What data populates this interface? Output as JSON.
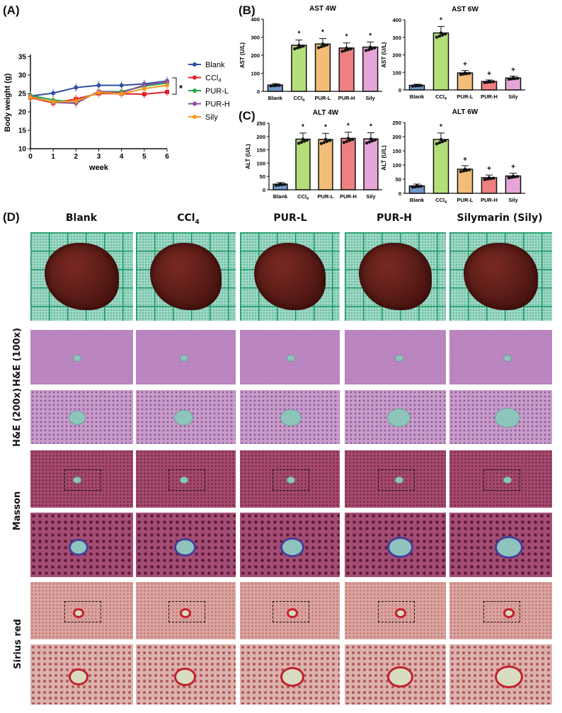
{
  "labels": {
    "a": "(A)",
    "b": "(B)",
    "c": "(C)",
    "d": "(D)"
  },
  "chart_data": [
    {
      "id": "bw",
      "type": "line",
      "xlabel": "week",
      "ylabel": "Body weight (g)",
      "xlim": [
        0,
        6
      ],
      "ylim": [
        10,
        35
      ],
      "xticks": [
        0,
        1,
        2,
        3,
        4,
        5,
        6
      ],
      "yticks": [
        10,
        15,
        20,
        25,
        30,
        35
      ],
      "legend": "right",
      "annotation": "*",
      "x": [
        0,
        1,
        2,
        3,
        4,
        5,
        6
      ],
      "series": [
        {
          "name": "Blank",
          "color": "#2e4fa3",
          "marker": "circle",
          "values": [
            24.3,
            25.1,
            26.6,
            27.2,
            27.2,
            27.6,
            28.4
          ]
        },
        {
          "name": "CCl4",
          "color": "#e5202a",
          "marker": "square",
          "values": [
            23.9,
            22.4,
            23.5,
            25.0,
            24.9,
            24.8,
            25.4
          ]
        },
        {
          "name": "PUR-L",
          "color": "#2aa44a",
          "marker": "triangle-up",
          "values": [
            24.5,
            23.2,
            22.7,
            25.5,
            25.5,
            27.0,
            27.8
          ]
        },
        {
          "name": "PUR-H",
          "color": "#8a4fa0",
          "marker": "triangle-down",
          "values": [
            24.2,
            22.6,
            22.3,
            25.6,
            25.2,
            27.3,
            28.2
          ]
        },
        {
          "name": "Sily",
          "color": "#f39a1e",
          "marker": "diamond",
          "values": [
            24.0,
            22.7,
            22.9,
            25.3,
            24.9,
            26.3,
            27.2
          ]
        }
      ]
    },
    {
      "id": "ast4",
      "type": "bar",
      "title": "AST 4W",
      "ylabel": "AST (U/L)",
      "ylim": [
        0,
        400
      ],
      "yticks": [
        0,
        100,
        200,
        300,
        400
      ],
      "categories": [
        "Blank",
        "CCl4",
        "PUR-L",
        "PUR-H",
        "Sily"
      ],
      "values": [
        35,
        255,
        262,
        240,
        245
      ],
      "marks": [
        "",
        "*",
        "*",
        "*",
        "*"
      ]
    },
    {
      "id": "ast6",
      "type": "bar",
      "title": "AST 6W",
      "ylabel": "AST (U/L)",
      "ylim": [
        0,
        400
      ],
      "yticks": [
        0,
        100,
        200,
        300,
        400
      ],
      "categories": [
        "Blank",
        "CCl4",
        "PUR-L",
        "PUR-H",
        "Sily"
      ],
      "values": [
        26,
        325,
        97,
        48,
        68
      ],
      "marks": [
        "",
        "*",
        "+",
        "+",
        "+"
      ]
    },
    {
      "id": "alt4",
      "type": "bar",
      "title": "ALT 4W",
      "ylabel": "ALT (U/L)",
      "ylim": [
        0,
        250
      ],
      "yticks": [
        0,
        50,
        100,
        150,
        200,
        250
      ],
      "categories": [
        "Blank",
        "CCl4",
        "PUR-L",
        "PUR-H",
        "Sily"
      ],
      "values": [
        21,
        190,
        189,
        193,
        191
      ],
      "marks": [
        "",
        "*",
        "*",
        "*",
        "*"
      ]
    },
    {
      "id": "alt6",
      "type": "bar",
      "title": "ALT 6W",
      "ylabel": "ALT (U/L)",
      "ylim": [
        0,
        250
      ],
      "yticks": [
        0,
        50,
        100,
        150,
        200,
        250
      ],
      "categories": [
        "Blank",
        "CCl4",
        "PUR-L",
        "PUR-H",
        "Sily"
      ],
      "values": [
        26,
        190,
        85,
        55,
        61
      ],
      "marks": [
        "",
        "*",
        "+",
        "+",
        "+"
      ]
    }
  ],
  "bar_colors": [
    "#6f97c9",
    "#b5de7a",
    "#f2bd78",
    "#ee8080",
    "#e5a6d7"
  ],
  "columns": [
    "Blank",
    "CCl4",
    "PUR-L",
    "PUR-H",
    "Silymarin (Sily)"
  ],
  "rows": [
    "H&E (100x)",
    "H&E (200x)",
    "Masson",
    "Sirius red"
  ]
}
